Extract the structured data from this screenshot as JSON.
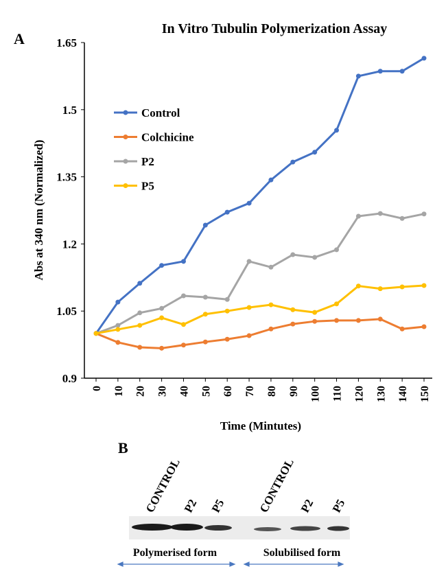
{
  "panel_a_label": "A",
  "chart_data": {
    "type": "line",
    "title": "In Vitro Tubulin Polymerization Assay",
    "x_label": "Time (Mintutes)",
    "y_label": "Abs at 340 nm (Normalized)",
    "x": [
      0,
      10,
      20,
      30,
      40,
      50,
      60,
      70,
      80,
      90,
      100,
      110,
      120,
      130,
      140,
      150
    ],
    "series": [
      {
        "name": "Control",
        "color": "#4472c4",
        "values": [
          1.0,
          1.07,
          1.112,
          1.152,
          1.161,
          1.242,
          1.271,
          1.291,
          1.343,
          1.383,
          1.405,
          1.454,
          1.575,
          1.586,
          1.586,
          1.615
        ]
      },
      {
        "name": "Colchicine",
        "color": "#ed7d31",
        "values": [
          1.0,
          0.98,
          0.969,
          0.967,
          0.974,
          0.981,
          0.987,
          0.995,
          1.01,
          1.021,
          1.027,
          1.029,
          1.029,
          1.032,
          1.01,
          1.015
        ]
      },
      {
        "name": "P2",
        "color": "#a5a5a5",
        "values": [
          1.0,
          1.018,
          1.046,
          1.056,
          1.084,
          1.081,
          1.076,
          1.161,
          1.148,
          1.176,
          1.17,
          1.187,
          1.262,
          1.268,
          1.257,
          1.267
        ]
      },
      {
        "name": "P5",
        "color": "#ffc000",
        "values": [
          1.0,
          1.009,
          1.018,
          1.035,
          1.02,
          1.043,
          1.05,
          1.058,
          1.064,
          1.053,
          1.047,
          1.066,
          1.106,
          1.1,
          1.104,
          1.107
        ]
      }
    ],
    "xlim": [
      0,
      150
    ],
    "xticks": [
      0,
      10,
      20,
      30,
      40,
      50,
      60,
      70,
      80,
      90,
      100,
      110,
      120,
      130,
      140,
      150
    ],
    "ylim": [
      0.9,
      1.65
    ],
    "yticks": [
      0.9,
      1.05,
      1.2,
      1.35,
      1.5,
      1.65
    ],
    "grid": false,
    "legend": "upper-left"
  },
  "panel_b": {
    "label": "B",
    "lanes": [
      "CONTROL",
      "P2",
      "P5",
      "CONTROL",
      "P2",
      "P5"
    ],
    "groups": [
      "Polymerised form",
      "Solubilised form"
    ]
  }
}
